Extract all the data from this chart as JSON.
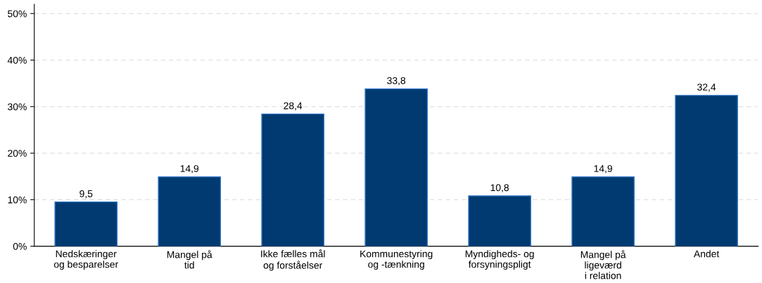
{
  "chart_data": {
    "type": "bar",
    "categories": [
      "Nedskæringer\nog besparelser",
      "Mangel på\ntid",
      "Ikke fælles mål\nog forståelser",
      "Kommunestyring\nog -tænkning",
      "Myndigheds- og\nforsyningspligt",
      "Mangel på\nligeværd\ni relation",
      "Andet"
    ],
    "values": [
      9.5,
      14.9,
      28.4,
      33.8,
      10.8,
      14.9,
      32.4
    ],
    "value_labels": [
      "9,5",
      "14,9",
      "28,4",
      "33,8",
      "10,8",
      "14,9",
      "32,4"
    ],
    "color": "#003a70",
    "ylim": [
      0,
      52
    ],
    "yticks": [
      {
        "value": 0,
        "label": "0%"
      },
      {
        "value": 10,
        "label": "10%"
      },
      {
        "value": 20,
        "label": "20%"
      },
      {
        "value": 30,
        "label": "30%"
      },
      {
        "value": 40,
        "label": "40%"
      },
      {
        "value": 50,
        "label": "50%"
      }
    ],
    "grid": "y"
  }
}
